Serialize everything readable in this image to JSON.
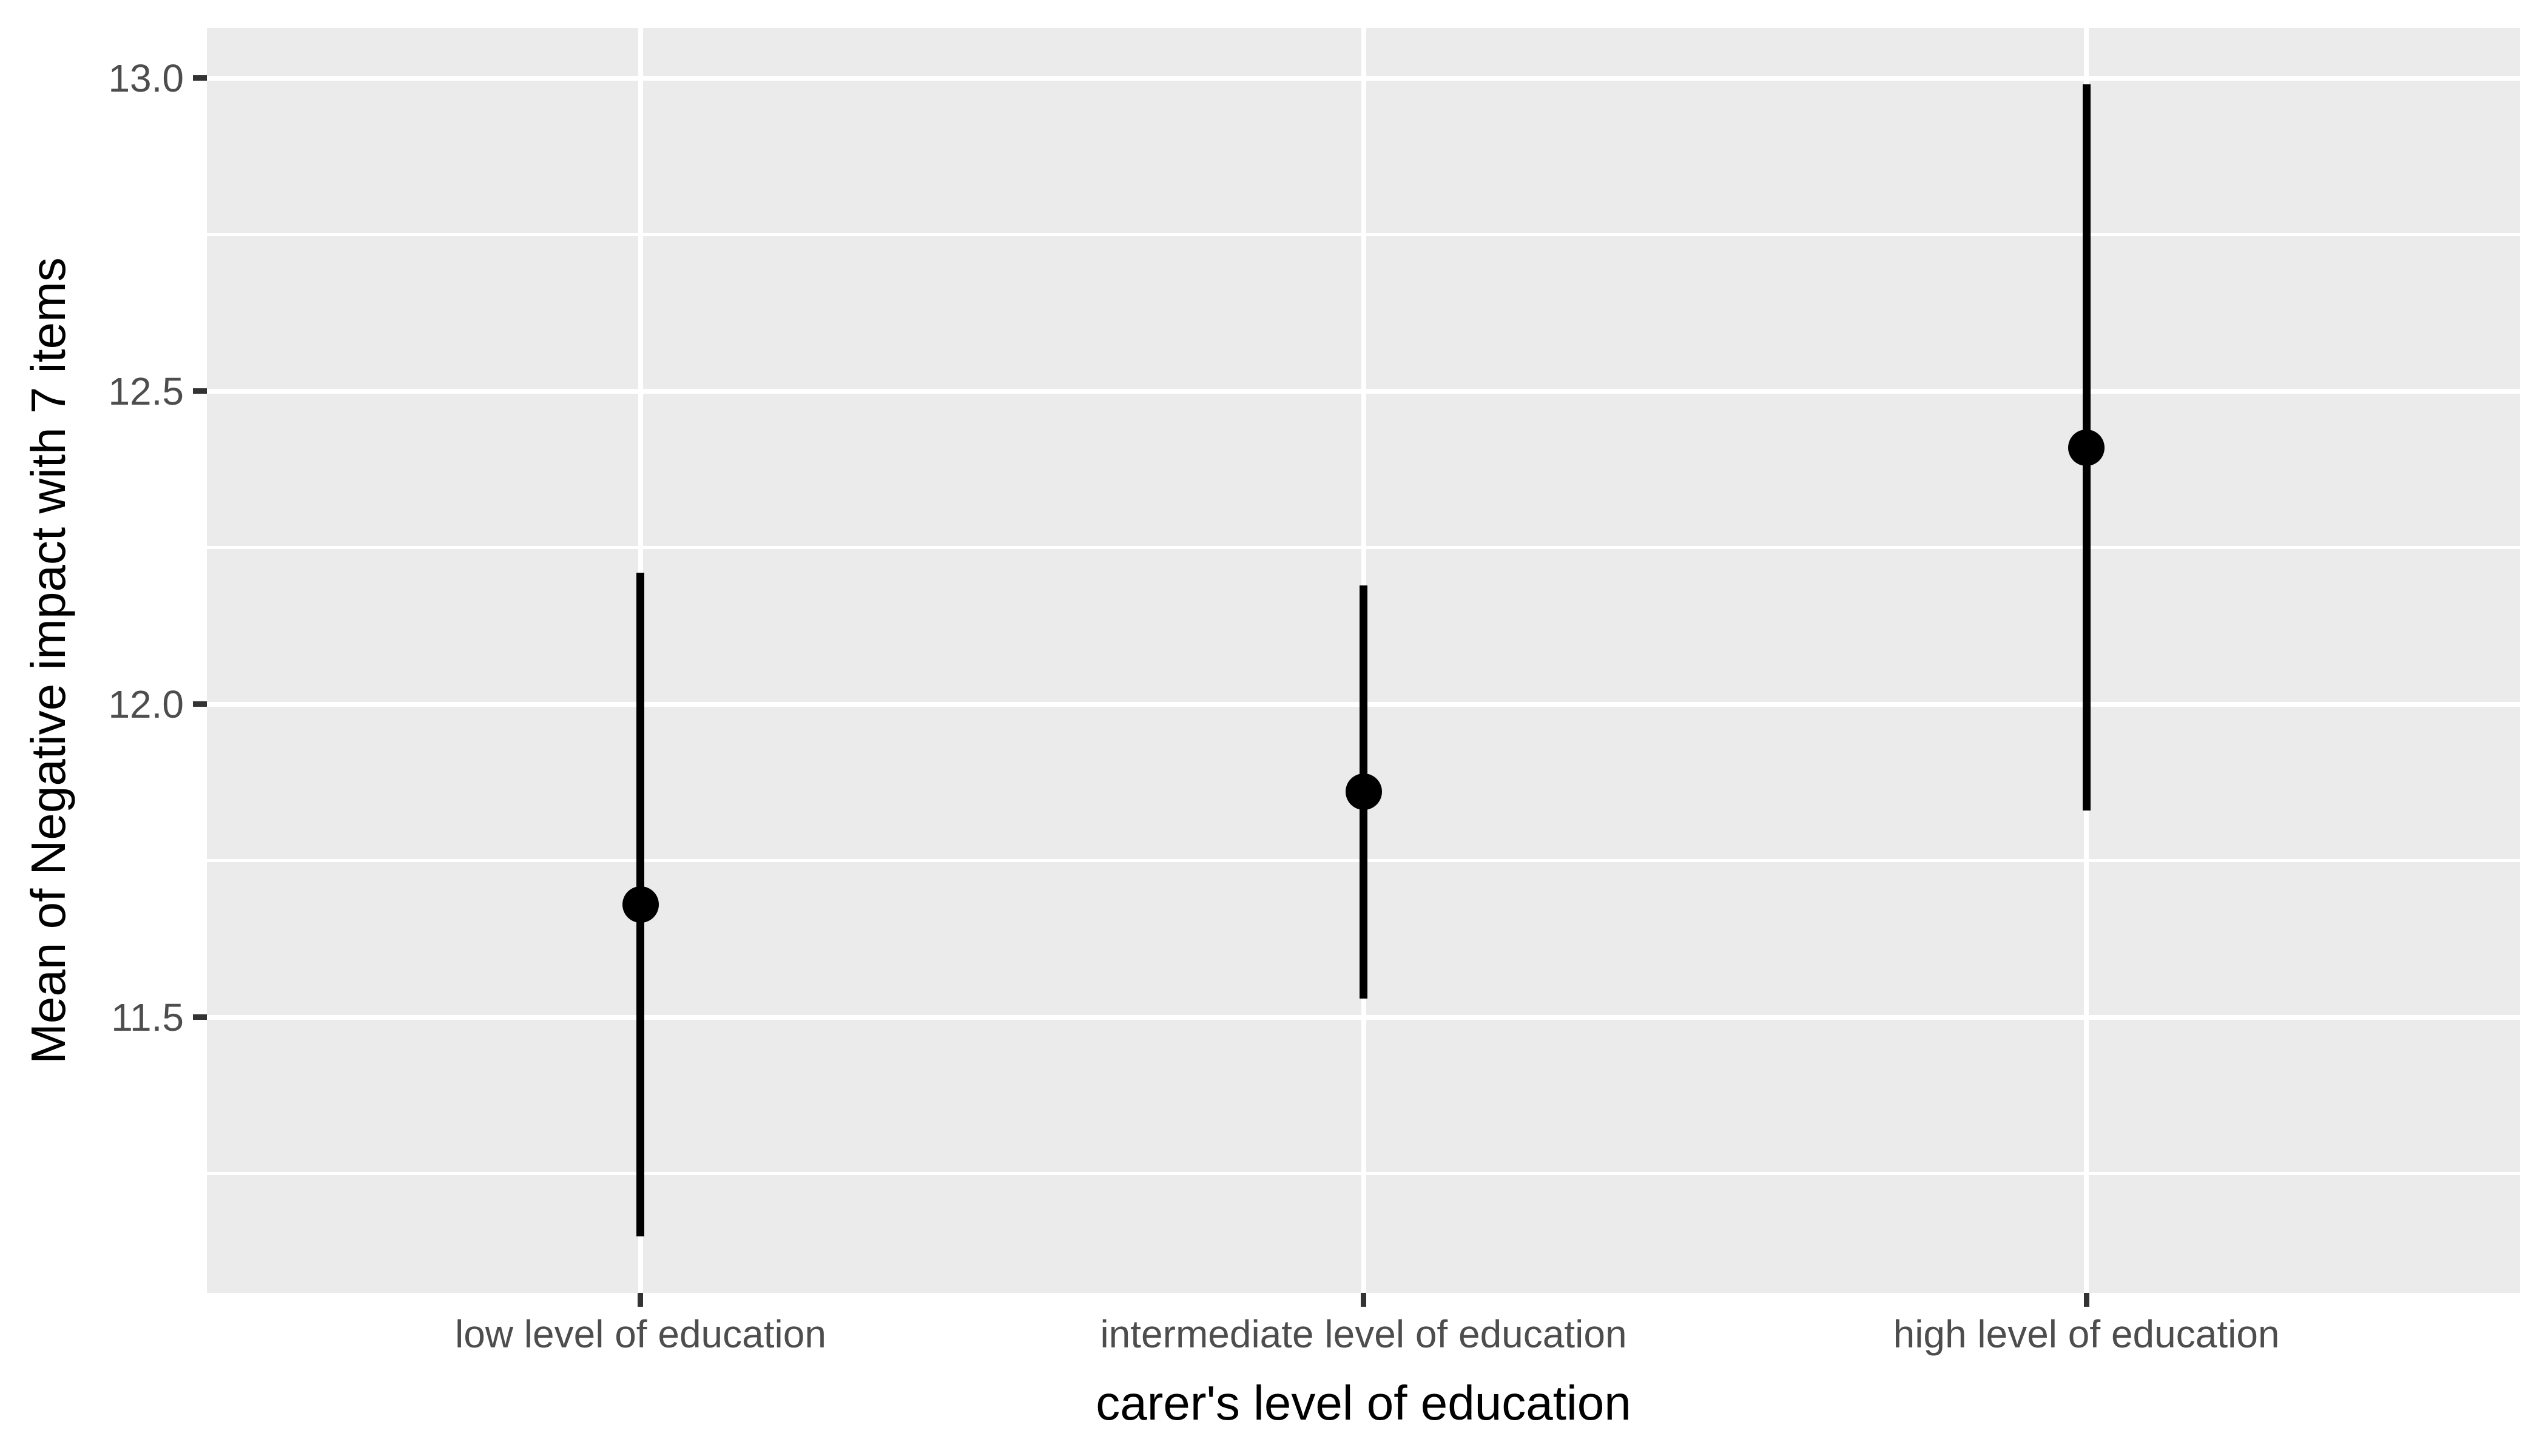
{
  "chart_data": {
    "type": "pointrange",
    "title": "",
    "xlabel": "carer's level of education",
    "ylabel": "Mean of Negative impact with 7 items",
    "categories": [
      "low level of education",
      "intermediate level of education",
      "high level of education"
    ],
    "series": [
      {
        "name": "mean",
        "values": [
          11.68,
          11.86,
          12.41
        ]
      },
      {
        "name": "ci_lower",
        "values": [
          11.15,
          11.53,
          11.83
        ]
      },
      {
        "name": "ci_upper",
        "values": [
          12.21,
          12.19,
          12.99
        ]
      }
    ],
    "y_ticks_major": [
      {
        "value": 13.0,
        "label": "13.0"
      },
      {
        "value": 12.5,
        "label": "12.5"
      },
      {
        "value": 12.0,
        "label": "12.0"
      },
      {
        "value": 11.5,
        "label": "11.5"
      }
    ],
    "y_ticks_minor": [
      12.75,
      12.25,
      11.75,
      11.25
    ],
    "ylim": [
      11.06,
      13.08
    ],
    "grid": "on",
    "legend": "none",
    "colors": {
      "panel_background": "#EBEBEB",
      "gridline": "#FFFFFF",
      "geom": "#000000",
      "axis_text": "#4D4D4D",
      "axis_title": "#000000",
      "tick_mark": "#333333",
      "figure_background": "#FFFFFF"
    }
  }
}
